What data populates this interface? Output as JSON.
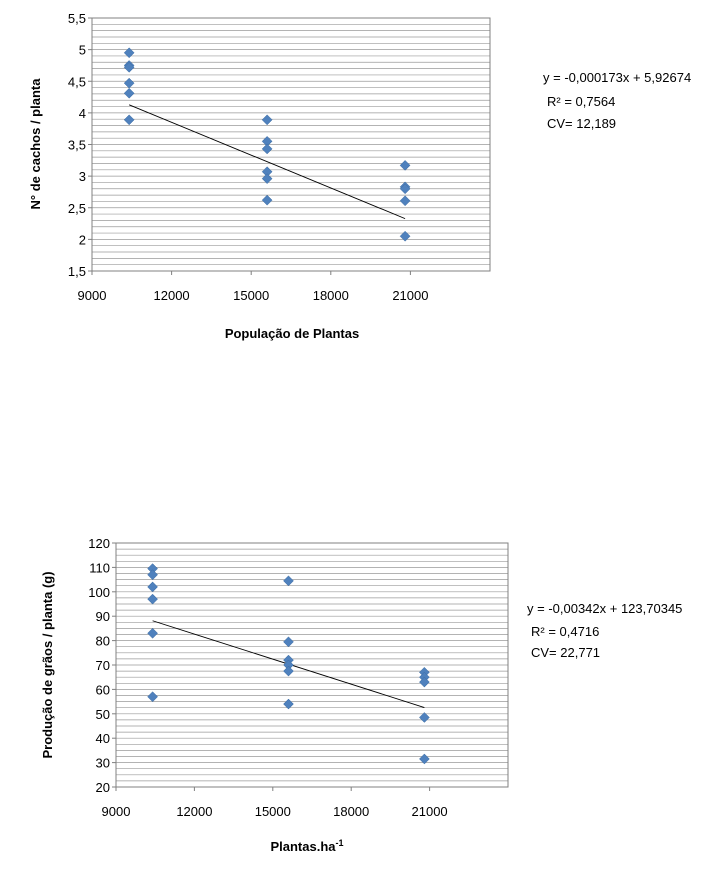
{
  "chart_data": [
    {
      "type": "scatter",
      "xlabel": "População de Plantas",
      "ylabel": "N° de cachos / planta",
      "xlim": [
        9000,
        24000
      ],
      "ylim": [
        1.5,
        5.5
      ],
      "xticks": [
        9000,
        12000,
        15000,
        18000,
        21000
      ],
      "xtick_labels": [
        "9000",
        "12000",
        "15000",
        "18000",
        "21000"
      ],
      "yticks": [
        1.5,
        2,
        2.5,
        3,
        3.5,
        4,
        4.5,
        5,
        5.5
      ],
      "ytick_labels": [
        "1,5",
        "2",
        "2,5",
        "3",
        "3,5",
        "4",
        "4,5",
        "5",
        "5,5"
      ],
      "minor_grid_step": 0.1,
      "grid": true,
      "marker_color": "#4f81bd",
      "points": [
        [
          10400,
          4.95
        ],
        [
          10400,
          4.75
        ],
        [
          10400,
          4.72
        ],
        [
          10400,
          4.47
        ],
        [
          10400,
          4.31
        ],
        [
          10400,
          3.89
        ],
        [
          15600,
          3.89
        ],
        [
          15600,
          3.55
        ],
        [
          15600,
          3.43
        ],
        [
          15600,
          3.07
        ],
        [
          15600,
          2.96
        ],
        [
          15600,
          2.62
        ],
        [
          20800,
          3.17
        ],
        [
          20800,
          2.83
        ],
        [
          20800,
          2.8
        ],
        [
          20800,
          2.61
        ],
        [
          20800,
          2.05
        ]
      ],
      "trendline": {
        "slope": -0.000173,
        "intercept": 5.92674,
        "x_from": 10400,
        "x_to": 20800
      },
      "annotations": [
        "y = -0,000173x + 5,92674",
        "R² = 0,7564",
        "CV= 12,189"
      ]
    },
    {
      "type": "scatter",
      "xlabel": "Plantas.ha",
      "xlabel_sup": "-1",
      "ylabel": "Produção de grãos / planta (g)",
      "xlim": [
        9000,
        24000
      ],
      "ylim": [
        20,
        120
      ],
      "xticks": [
        9000,
        12000,
        15000,
        18000,
        21000
      ],
      "xtick_labels": [
        "9000",
        "12000",
        "15000",
        "18000",
        "21000"
      ],
      "yticks": [
        20,
        30,
        40,
        50,
        60,
        70,
        80,
        90,
        100,
        110,
        120
      ],
      "ytick_labels": [
        "20",
        "30",
        "40",
        "50",
        "60",
        "70",
        "80",
        "90",
        "100",
        "110",
        "120"
      ],
      "minor_grid_step": 2.5,
      "grid": true,
      "marker_color": "#4f81bd",
      "points": [
        [
          10400,
          109.5
        ],
        [
          10400,
          107
        ],
        [
          10400,
          102
        ],
        [
          10400,
          97
        ],
        [
          10400,
          83
        ],
        [
          10400,
          57
        ],
        [
          15600,
          104.5
        ],
        [
          15600,
          79.5
        ],
        [
          15600,
          72
        ],
        [
          15600,
          70
        ],
        [
          15600,
          67.5
        ],
        [
          15600,
          54
        ],
        [
          20800,
          67
        ],
        [
          20800,
          65
        ],
        [
          20800,
          63
        ],
        [
          20800,
          48.5
        ],
        [
          20800,
          31.5
        ]
      ],
      "trendline": {
        "slope": -0.00342,
        "intercept": 123.70345,
        "x_from": 10400,
        "x_to": 20800
      },
      "annotations": [
        "y = -0,00342x + 123,70345",
        "R² = 0,4716",
        "CV= 22,771"
      ]
    }
  ]
}
